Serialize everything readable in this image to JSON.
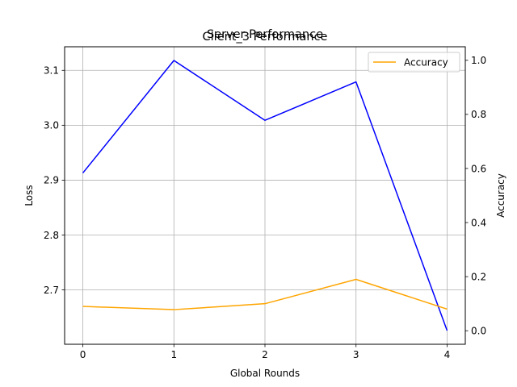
{
  "chart_data": {
    "type": "line",
    "titles": [
      "Client_3 Performance",
      "Server Performance"
    ],
    "xlabel": "Global Rounds",
    "ylabel_left": "Loss",
    "ylabel_right": "Accuracy",
    "x": [
      0,
      1,
      2,
      3,
      4
    ],
    "xticks": [
      "0",
      "1",
      "2",
      "3",
      "4"
    ],
    "xlim": [
      -0.2,
      4.2
    ],
    "ylim_left": [
      2.601,
      3.143
    ],
    "yticks_left": [
      "2.7",
      "2.8",
      "2.9",
      "3.0",
      "3.1"
    ],
    "ylim_right": [
      -0.05,
      1.05
    ],
    "yticks_right": [
      "0.0",
      "0.2",
      "0.4",
      "0.6",
      "0.8",
      "1.0"
    ],
    "grid": true,
    "legend_placement": "top-right",
    "series": [
      {
        "name": "",
        "axis": "left",
        "color": "#0000ff",
        "values": [
          2.913,
          3.118,
          3.009,
          3.079,
          2.626
        ]
      },
      {
        "name": "Accuracy",
        "axis": "right",
        "color": "#ffa500",
        "values": [
          0.09,
          0.078,
          0.1,
          0.19,
          0.08
        ]
      }
    ]
  }
}
